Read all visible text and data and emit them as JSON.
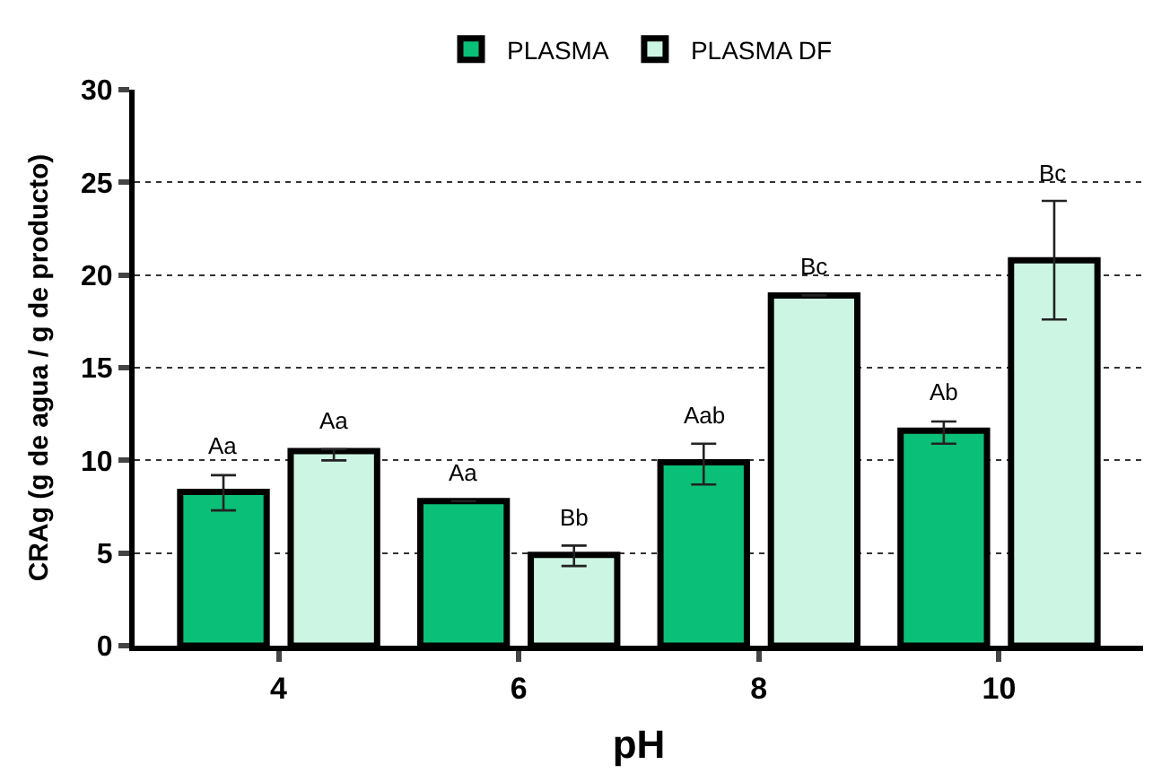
{
  "chart_data": {
    "type": "bar",
    "xlabel": "pH",
    "ylabel": "CRAg (g de agua / g de producto)",
    "categories": [
      "4",
      "6",
      "8",
      "10"
    ],
    "series": [
      {
        "name": "PLASMA",
        "color": "#0abf78",
        "values": [
          8.3,
          7.8,
          9.9,
          11.6
        ],
        "errors": [
          [
            7.3,
            9.2
          ],
          null,
          [
            8.7,
            10.9
          ],
          [
            10.9,
            12.1
          ]
        ],
        "value_labels": [
          "Aa",
          "Aa",
          "Aab",
          "Ab"
        ]
      },
      {
        "name": "PLASMA DF",
        "color": "#ccf6e3",
        "values": [
          10.5,
          4.9,
          18.9,
          20.8
        ],
        "errors": [
          [
            10.0,
            10.6
          ],
          [
            4.3,
            5.4
          ],
          null,
          [
            17.6,
            24.0
          ]
        ],
        "value_labels": [
          "Aa",
          "Bb",
          "Bc",
          "Bc"
        ]
      }
    ],
    "ylim": [
      0,
      30
    ],
    "yticks": [
      0,
      5,
      10,
      15,
      20,
      25,
      30
    ],
    "grid": "y",
    "legend": "top"
  }
}
